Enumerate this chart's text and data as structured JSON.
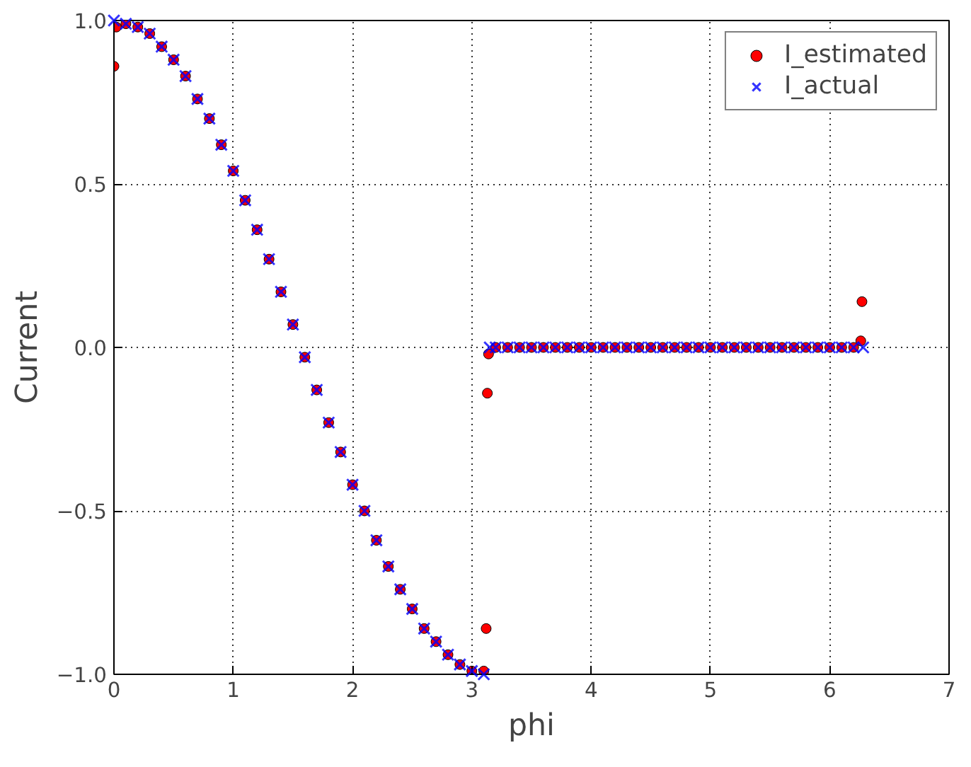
{
  "chart_data": {
    "type": "scatter",
    "xlabel": "phi",
    "ylabel": "Current",
    "xlim": [
      0,
      7
    ],
    "ylim": [
      -1,
      1
    ],
    "xticks": [
      0,
      1,
      2,
      3,
      4,
      5,
      6,
      7
    ],
    "yticks": [
      {
        "value": -1,
        "label": "−1.0"
      },
      {
        "value": -0.5,
        "label": "−0.5"
      },
      {
        "value": 0,
        "label": "0.0"
      },
      {
        "value": 0.5,
        "label": "0.5"
      },
      {
        "value": 1,
        "label": "1.0"
      }
    ],
    "grid": true,
    "legend": "top right",
    "series": [
      {
        "name": "I_estimated",
        "color": "#ff0000",
        "marker": "circle",
        "x": [
          0,
          0.02,
          0.1,
          0.2,
          0.3,
          0.4,
          0.5,
          0.6,
          0.7,
          0.8,
          0.9,
          1.0,
          1.1,
          1.2,
          1.3,
          1.4,
          1.5,
          1.6,
          1.7,
          1.8,
          1.9,
          2.0,
          2.1,
          2.2,
          2.3,
          2.4,
          2.5,
          2.6,
          2.7,
          2.8,
          2.9,
          3.0,
          3.1,
          3.12,
          3.13,
          3.14,
          3.2,
          3.3,
          3.4,
          3.5,
          3.6,
          3.7,
          3.8,
          3.9,
          4.0,
          4.1,
          4.2,
          4.3,
          4.4,
          4.5,
          4.6,
          4.7,
          4.8,
          4.9,
          5.0,
          5.1,
          5.2,
          5.3,
          5.4,
          5.5,
          5.6,
          5.7,
          5.8,
          5.9,
          6.0,
          6.1,
          6.2,
          6.26,
          6.27
        ],
        "values": [
          0.86,
          0.98,
          0.99,
          0.98,
          0.96,
          0.92,
          0.88,
          0.83,
          0.76,
          0.7,
          0.62,
          0.54,
          0.45,
          0.36,
          0.27,
          0.17,
          0.07,
          -0.03,
          -0.13,
          -0.23,
          -0.32,
          -0.42,
          -0.5,
          -0.59,
          -0.67,
          -0.74,
          -0.8,
          -0.86,
          -0.9,
          -0.94,
          -0.97,
          -0.99,
          -0.99,
          -0.86,
          -0.14,
          -0.02,
          0,
          0,
          0,
          0,
          0,
          0,
          0,
          0,
          0,
          0,
          0,
          0,
          0,
          0,
          0,
          0,
          0,
          0,
          0,
          0,
          0,
          0,
          0,
          0,
          0,
          0,
          0,
          0,
          0,
          0,
          0,
          0.02,
          0.14
        ]
      },
      {
        "name": "I_actual",
        "color": "#0000ff",
        "marker": "cross",
        "x": [
          0,
          0.1,
          0.2,
          0.3,
          0.4,
          0.5,
          0.6,
          0.7,
          0.8,
          0.9,
          1.0,
          1.1,
          1.2,
          1.3,
          1.4,
          1.5,
          1.6,
          1.7,
          1.8,
          1.9,
          2.0,
          2.1,
          2.2,
          2.3,
          2.4,
          2.5,
          2.6,
          2.7,
          2.8,
          2.9,
          3.0,
          3.1,
          3.15,
          3.2,
          3.3,
          3.4,
          3.5,
          3.6,
          3.7,
          3.8,
          3.9,
          4.0,
          4.1,
          4.2,
          4.3,
          4.4,
          4.5,
          4.6,
          4.7,
          4.8,
          4.9,
          5.0,
          5.1,
          5.2,
          5.3,
          5.4,
          5.5,
          5.6,
          5.7,
          5.8,
          5.9,
          6.0,
          6.1,
          6.2,
          6.28
        ],
        "values": [
          1.0,
          0.99,
          0.98,
          0.96,
          0.92,
          0.88,
          0.83,
          0.76,
          0.7,
          0.62,
          0.54,
          0.45,
          0.36,
          0.27,
          0.17,
          0.07,
          -0.03,
          -0.13,
          -0.23,
          -0.32,
          -0.42,
          -0.5,
          -0.59,
          -0.67,
          -0.74,
          -0.8,
          -0.86,
          -0.9,
          -0.94,
          -0.97,
          -0.99,
          -1.0,
          0,
          0,
          0,
          0,
          0,
          0,
          0,
          0,
          0,
          0,
          0,
          0,
          0,
          0,
          0,
          0,
          0,
          0,
          0,
          0,
          0,
          0,
          0,
          0,
          0,
          0,
          0,
          0,
          0,
          0,
          0,
          0,
          0
        ]
      }
    ]
  }
}
